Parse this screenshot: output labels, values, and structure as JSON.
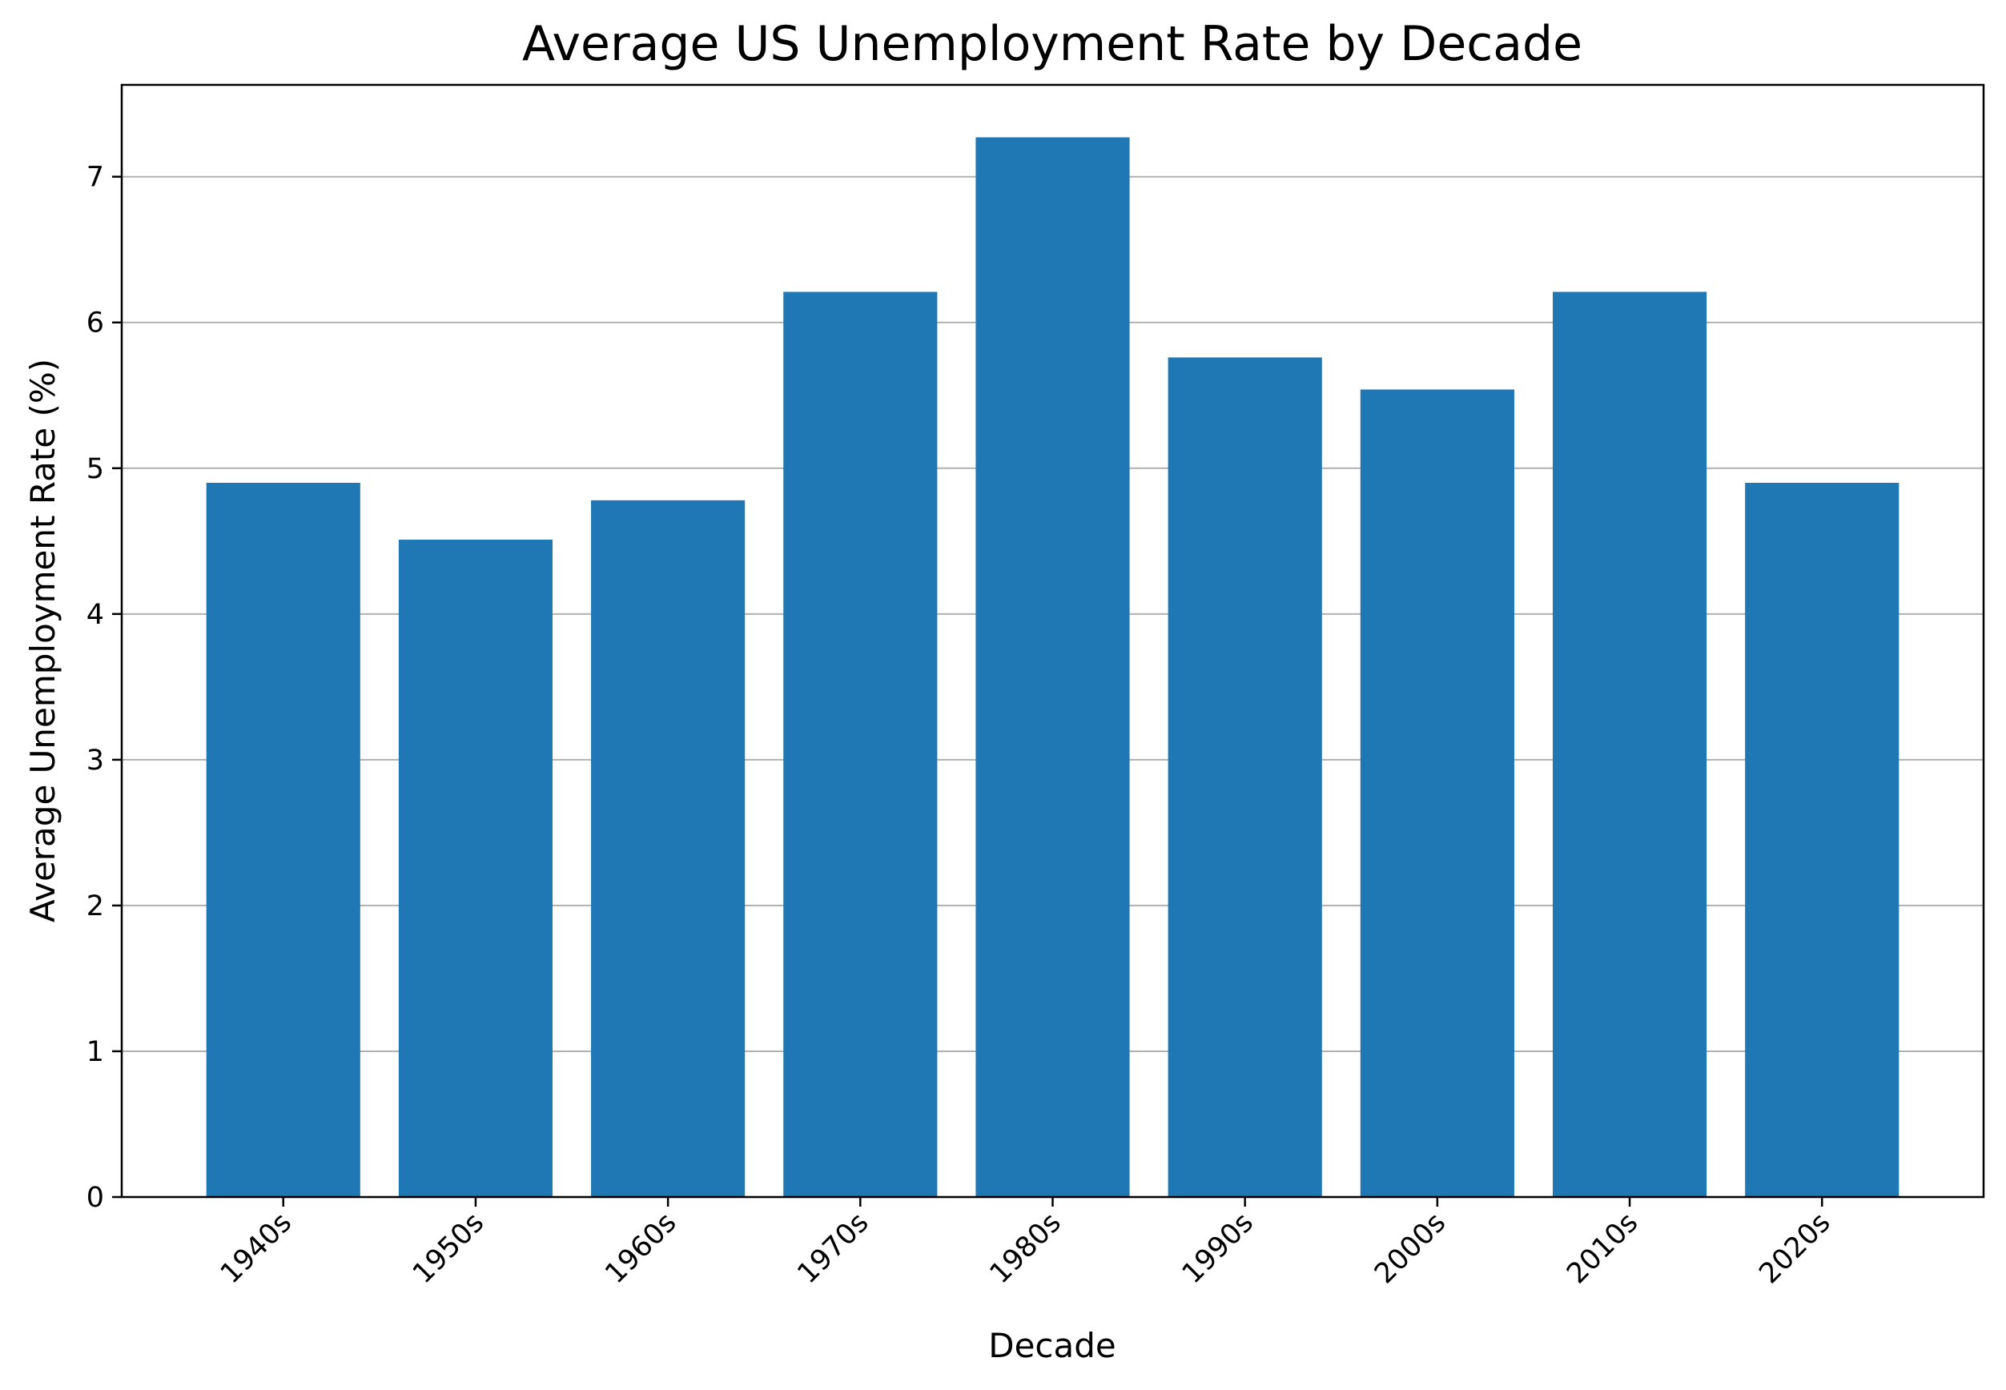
{
  "chart_data": {
    "type": "bar",
    "title": "Average US Unemployment Rate by Decade",
    "xlabel": "Decade",
    "ylabel": "Average Unemployment Rate (%)",
    "categories": [
      "1940s",
      "1950s",
      "1960s",
      "1970s",
      "1980s",
      "1990s",
      "2000s",
      "2010s",
      "2020s"
    ],
    "values": [
      4.9,
      4.51,
      4.78,
      6.21,
      7.27,
      5.76,
      5.54,
      6.21,
      4.9
    ],
    "ylim": [
      0,
      7.63
    ],
    "yticks": [
      0,
      1,
      2,
      3,
      4,
      5,
      6,
      7
    ],
    "ytick_labels": [
      "0",
      "1",
      "2",
      "3",
      "4",
      "5",
      "6",
      "7"
    ],
    "grid": "horizontal",
    "legend": "none",
    "xtick_rotation": "45 degrees",
    "bar_color": "#1f77b4",
    "grid_color": "#b0b0b0",
    "axis_color": "#000000"
  }
}
